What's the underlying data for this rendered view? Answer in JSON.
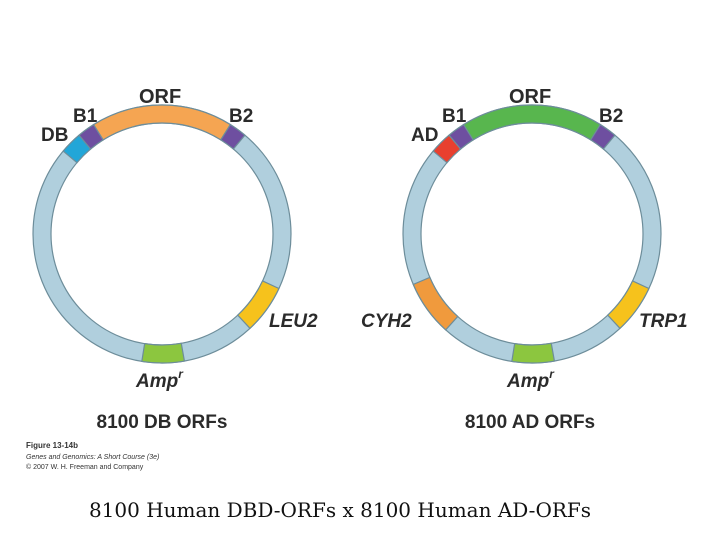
{
  "plasmid_db": {
    "segment_labels": {
      "db": "DB",
      "b1": "B1",
      "orf": "ORF",
      "b2": "B2",
      "marker": "LEU2",
      "amp_base": "Amp",
      "amp_sup": "r"
    },
    "title": "8100 DB ORFs"
  },
  "plasmid_ad": {
    "segment_labels": {
      "ad": "AD",
      "b1": "B1",
      "orf": "ORF",
      "b2": "B2",
      "marker_left": "CYH2",
      "marker_right": "TRP1",
      "amp_base": "Amp",
      "amp_sup": "r"
    },
    "title": "8100 AD ORFs"
  },
  "figure_credit": {
    "figure_number": "Figure 13-14b",
    "book": "Genes and Genomics: A Short Course (3e)",
    "copyright": "© 2007 W. H. Freeman and Company"
  },
  "caption": "8100 Human DBD-ORFs x 8100 Human AD-ORFs",
  "colors": {
    "backbone": "#b0cfdd",
    "outline": "#6d8d9a",
    "orf_db": "#f5a552",
    "orf_ad": "#58b64e",
    "attb": "#6e4fa0",
    "db_domain": "#22a6d8",
    "ad_domain": "#e8402f",
    "leu2": "#f6c21c",
    "trp1": "#f6c21c",
    "cyh2": "#f09a3d",
    "amp": "#8cc63f"
  }
}
